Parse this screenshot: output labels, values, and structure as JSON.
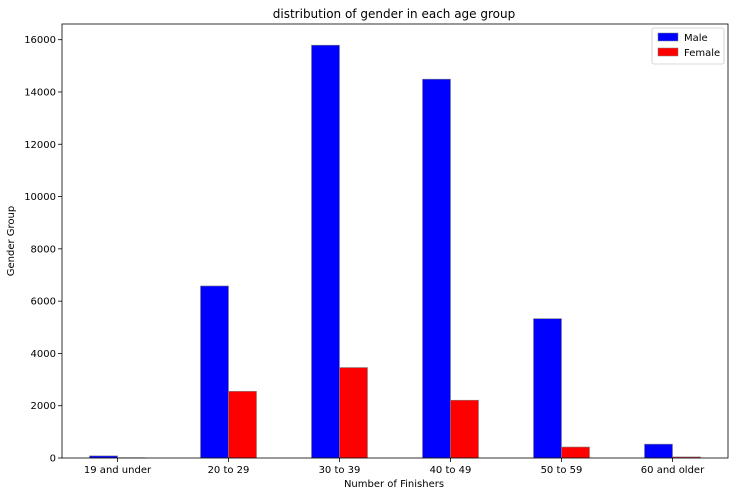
{
  "chart_data": {
    "type": "bar",
    "title": "distribution of gender in each age group",
    "xlabel": "Number of Finishers",
    "ylabel": "Gender Group",
    "categories": [
      "19 and under",
      "20 to 29",
      "30 to 39",
      "40 to 49",
      "50 to 59",
      "60 and older"
    ],
    "series": [
      {
        "name": "Male",
        "color": "#0000ff",
        "values": [
          80,
          6580,
          15790,
          14490,
          5330,
          530
        ]
      },
      {
        "name": "Female",
        "color": "#ff0000",
        "values": [
          10,
          2550,
          3460,
          2210,
          420,
          40
        ]
      }
    ],
    "ylim": [
      0,
      16600
    ],
    "yticks": [
      0,
      2000,
      4000,
      6000,
      8000,
      10000,
      12000,
      14000,
      16000
    ],
    "grid": false,
    "legend_position": "top-right"
  }
}
